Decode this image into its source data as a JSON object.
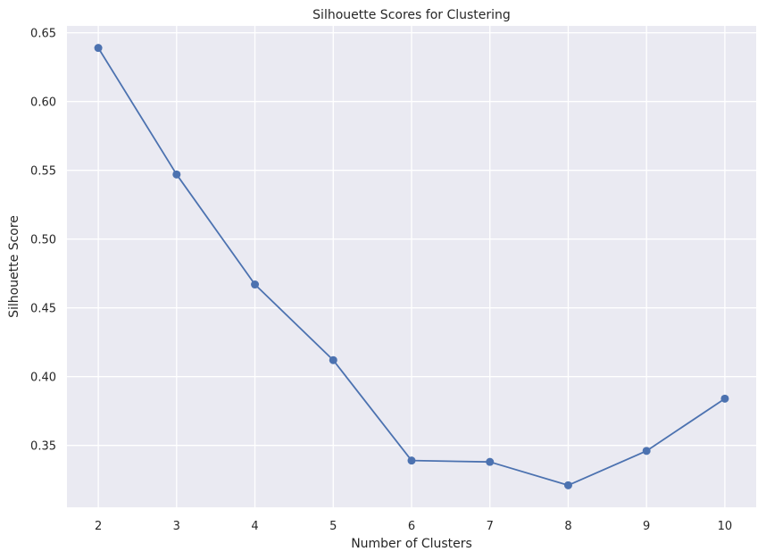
{
  "chart_data": {
    "type": "line",
    "title": "Silhouette Scores for Clustering",
    "xlabel": "Number of Clusters",
    "ylabel": "Silhouette Score",
    "x": [
      2,
      3,
      4,
      5,
      6,
      7,
      8,
      9,
      10
    ],
    "series": [
      {
        "values": [
          0.639,
          0.547,
          0.467,
          0.412,
          0.339,
          0.338,
          0.321,
          0.346,
          0.384
        ]
      }
    ],
    "xticks": [
      "2",
      "3",
      "4",
      "5",
      "6",
      "7",
      "8",
      "9",
      "10"
    ],
    "yticks": [
      "0.35",
      "0.40",
      "0.45",
      "0.50",
      "0.55",
      "0.60",
      "0.65"
    ],
    "xlim": [
      1.6,
      10.4
    ],
    "ylim": [
      0.305,
      0.655
    ],
    "grid": true,
    "markers": "circle",
    "colors": {
      "line": "#4c72b0",
      "plot_background": "#eaeaf2",
      "grid": "#ffffff",
      "text": "#262626"
    }
  }
}
